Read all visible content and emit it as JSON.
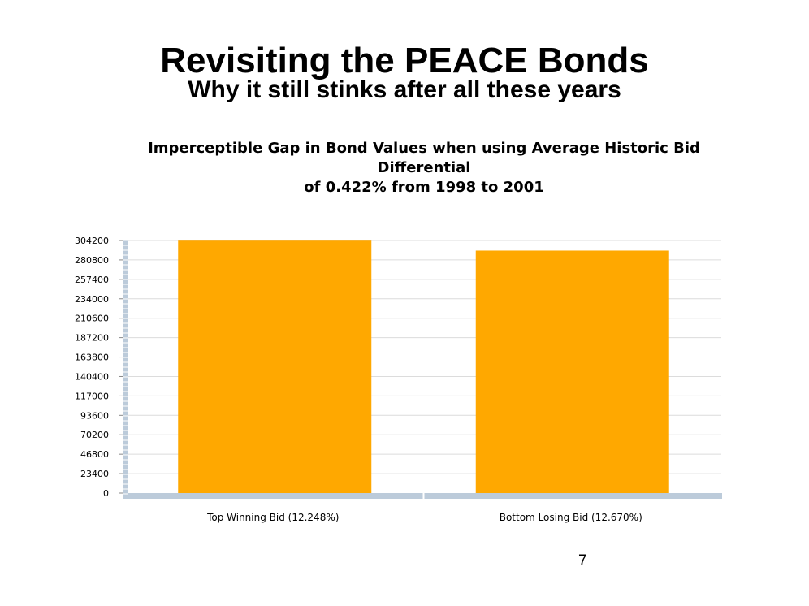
{
  "slide": {
    "title": "Revisiting the PEACE Bonds",
    "subtitle": "Why it still stinks after all these years",
    "page_number": "7"
  },
  "colors": {
    "bar": "#ffa800",
    "axis": "#bccbda",
    "grid": "#dcdcdc"
  },
  "chart_data": {
    "type": "bar",
    "title_lines": [
      "Imperceptible Gap in Bond Values when using Average Historic Bid Differential",
      "of 0.422% from 1998 to 2001"
    ],
    "categories": [
      "Top Winning Bid (12.248%)",
      "Bottom Losing Bid (12.670%)"
    ],
    "values": [
      304000,
      292000
    ],
    "yticks": [
      0,
      23400,
      46800,
      70200,
      93600,
      117000,
      140400,
      163800,
      187200,
      210600,
      234000,
      257400,
      280800,
      304200
    ],
    "ylim": [
      0,
      304200
    ],
    "grid": true,
    "legend": "none",
    "xlabel": "",
    "ylabel": ""
  }
}
